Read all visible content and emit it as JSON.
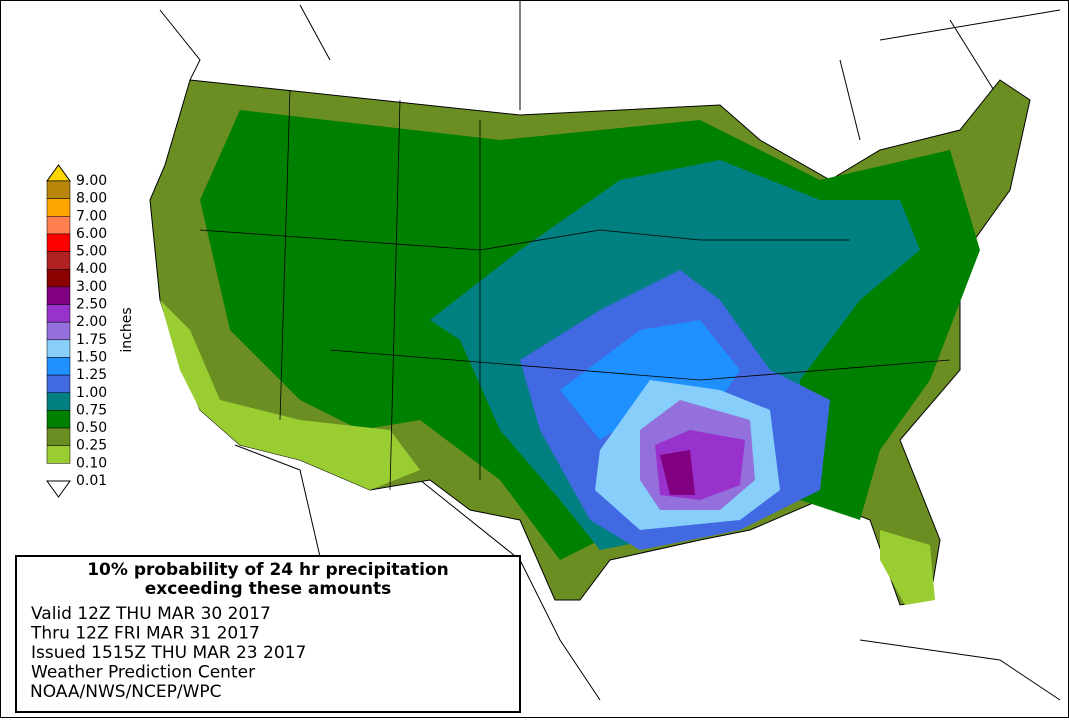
{
  "legend": {
    "unit": "inches",
    "labels": [
      "9.00",
      "8.00",
      "7.00",
      "6.00",
      "5.00",
      "4.00",
      "3.00",
      "2.50",
      "2.00",
      "1.75",
      "1.50",
      "1.25",
      "1.00",
      "0.75",
      "0.50",
      "0.25",
      "0.10",
      "0.01"
    ],
    "top_color": "#ffd700",
    "bottom_color": "#ffffff",
    "colors": [
      "#b8860b",
      "#ffa500",
      "#ff7f50",
      "#ff0000",
      "#b22222",
      "#8b0000",
      "#800080",
      "#9932cc",
      "#9370db",
      "#87cefa",
      "#1e90ff",
      "#4169e1",
      "#008080",
      "#008000",
      "#6b8e23",
      "#9acd32"
    ]
  },
  "info": {
    "title": [
      "10% probability of 24 hr precipitation",
      "exceeding these amounts"
    ],
    "lines": [
      "Valid 12Z THU MAR 30 2017",
      "Thru 12Z FRI MAR 31 2017",
      "Issued 1515Z THU MAR 23 2017",
      "Weather Prediction Center",
      "NOAA/NWS/NCEP/WPC"
    ]
  }
}
